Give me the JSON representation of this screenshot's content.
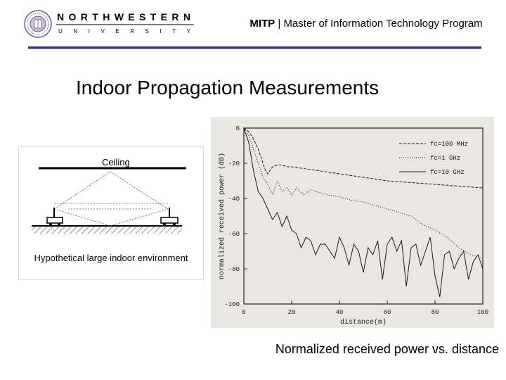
{
  "header": {
    "university_name": "NORTHWESTERN",
    "university_sub": "UNIVERSITY",
    "program_abbr": "MITP",
    "separator": " | ",
    "program_name": "Master of Information Technology Program",
    "accent_color": "#303a6e"
  },
  "slide": {
    "title": "Indoor Propagation Measurements"
  },
  "diagram": {
    "ceiling_label": "Ceiling",
    "caption": "Hypothetical large indoor environment"
  },
  "chart": {
    "caption": "Normalized received power vs. distance"
  },
  "chart_data": {
    "type": "line",
    "title": "",
    "xlabel": "distance(m)",
    "ylabel": "normalized received power (dB)",
    "xlim": [
      0,
      100
    ],
    "ylim": [
      -100,
      0
    ],
    "xticks": [
      "0",
      "20",
      "40",
      "60",
      "80",
      "100"
    ],
    "yticks": [
      "0",
      "-20",
      "-40",
      "-60",
      "-80",
      "-100"
    ],
    "legend": "top-right",
    "series": [
      {
        "name": "fc=100 MHz",
        "style": "dashed",
        "x": [
          0,
          2,
          4,
          6,
          8,
          9,
          10,
          11,
          12,
          14,
          16,
          18,
          20,
          25,
          30,
          40,
          50,
          60,
          70,
          80,
          90,
          100
        ],
        "y": [
          0,
          -2,
          -6,
          -12,
          -20,
          -24,
          -26,
          -24,
          -22,
          -21,
          -21,
          -22,
          -22,
          -23,
          -24,
          -26,
          -28,
          -30,
          -31,
          -32,
          -33,
          -34
        ]
      },
      {
        "name": "fc=1 GHz",
        "style": "dotted",
        "x": [
          0,
          2,
          4,
          6,
          8,
          10,
          12,
          14,
          16,
          18,
          20,
          22,
          25,
          28,
          30,
          35,
          40,
          45,
          50,
          55,
          60,
          65,
          70,
          75,
          80,
          85,
          90,
          95,
          100
        ],
        "y": [
          0,
          -4,
          -12,
          -20,
          -28,
          -32,
          -38,
          -30,
          -36,
          -34,
          -38,
          -34,
          -38,
          -35,
          -36,
          -38,
          -39,
          -41,
          -42,
          -44,
          -46,
          -48,
          -50,
          -55,
          -58,
          -62,
          -68,
          -72,
          -74
        ]
      },
      {
        "name": "fc=10 GHz",
        "style": "solid",
        "x": [
          0,
          2,
          4,
          6,
          8,
          10,
          12,
          14,
          16,
          18,
          20,
          22,
          24,
          26,
          28,
          30,
          32,
          34,
          36,
          38,
          40,
          42,
          44,
          46,
          48,
          50,
          52,
          54,
          56,
          58,
          60,
          62,
          64,
          66,
          68,
          70,
          72,
          74,
          76,
          78,
          80,
          82,
          84,
          86,
          88,
          90,
          92,
          94,
          96,
          98,
          100
        ],
        "y": [
          0,
          -8,
          -24,
          -36,
          -40,
          -46,
          -52,
          -48,
          -56,
          -50,
          -58,
          -60,
          -68,
          -62,
          -64,
          -72,
          -66,
          -66,
          -70,
          -74,
          -62,
          -68,
          -78,
          -66,
          -70,
          -82,
          -68,
          -72,
          -64,
          -86,
          -66,
          -62,
          -70,
          -64,
          -90,
          -68,
          -66,
          -78,
          -70,
          -62,
          -84,
          -96,
          -72,
          -70,
          -80,
          -74,
          -70,
          -86,
          -76,
          -72,
          -80
        ]
      }
    ]
  }
}
